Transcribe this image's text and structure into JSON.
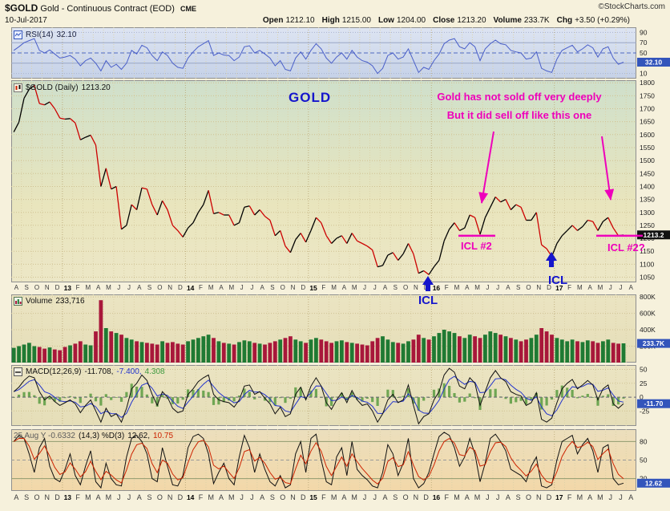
{
  "header": {
    "symbol": "$GOLD",
    "title": "Gold - Continuous Contract (EOD)",
    "exchange": "CME",
    "copyright": "©StockCharts.com",
    "date": "10-Jul-2017",
    "quote": {
      "open_label": "Open",
      "open": "1212.10",
      "high_label": "High",
      "high": "1215.00",
      "low_label": "Low",
      "low": "1204.00",
      "close_label": "Close",
      "close": "1213.20",
      "volume_label": "Volume",
      "volume": "233.7K",
      "chg_label": "Chg",
      "chg": "+3.50 (+0.29%)"
    }
  },
  "panels": {
    "rsi": {
      "name": "RSI(14)",
      "value": "32.10",
      "current_box": "32.10"
    },
    "price": {
      "name": "$GOLD (Daily)",
      "value": "1213.20",
      "current_box": "1213.2"
    },
    "volume": {
      "name": "Volume",
      "value": "233,716",
      "current_box": "233.7K"
    },
    "macd": {
      "name": "MACD(12,26,9)",
      "v1": "-11.708,",
      "v2": "-7.400,",
      "v3": "4.308",
      "current_box": "-11.70"
    },
    "stoch": {
      "prefix": "25 Aug Y -0.6332",
      "params": "(14,3) %D(3)",
      "v1": "12.62,",
      "v2": "10.75",
      "current_box": "12.62"
    }
  },
  "annotations": {
    "gold_label": "GOLD",
    "note_line1": "Gold has not sold off very deeply",
    "note_line2": "But it did sell off like this one",
    "icl2_label": "ICL #2",
    "icl2q_label": "ICL #2?",
    "icl_label_1": "ICL",
    "icl_label_2": "ICL",
    "icl_line_level": 1210
  },
  "colors": {
    "magenta": "#ee00bb",
    "annotation_blue": "#1515cc",
    "price_up": "#000000",
    "price_down": "#cc0000",
    "rsi_line": "#4a5fc8",
    "macd_line": "#111111",
    "macd_signal": "#2233cc",
    "macd_hist": "#6fa653",
    "macd_hist_text": "#3f9a3f",
    "stoch_k": "#111111",
    "stoch_d": "#cc2200",
    "volume_up": "#1f7a33",
    "volume_down": "#a8173a",
    "value_box": "#3355bb",
    "price_box": "#111111"
  },
  "chart_data": [
    {
      "id": "rsi",
      "type": "line",
      "name": "RSI(14)",
      "ylim": [
        0,
        100
      ],
      "yticks": [
        90,
        70,
        50,
        30,
        10
      ],
      "current": 32.1,
      "values": [
        55,
        62,
        70,
        74,
        78,
        55,
        50,
        56,
        48,
        40,
        42,
        45,
        38,
        25,
        35,
        40,
        30,
        15,
        35,
        22,
        28,
        18,
        30,
        55,
        48,
        65,
        60,
        45,
        35,
        52,
        45,
        30,
        22,
        20,
        40,
        52,
        62,
        68,
        74,
        45,
        50,
        46,
        45,
        35,
        42,
        62,
        64,
        50,
        55,
        48,
        40,
        25,
        35,
        18,
        15,
        40,
        52,
        38,
        55,
        68,
        58,
        40,
        30,
        42,
        50,
        38,
        55,
        42,
        35,
        32,
        25,
        10,
        20,
        45,
        50,
        38,
        42,
        58,
        35,
        12,
        22,
        18,
        35,
        48,
        68,
        75,
        78,
        62,
        58,
        70,
        62,
        35,
        58,
        68,
        75,
        68,
        66,
        55,
        52,
        50,
        38,
        40,
        52,
        20,
        15,
        12,
        38,
        55,
        60,
        65,
        52,
        58,
        66,
        60,
        42,
        58,
        62,
        40,
        28,
        32.1
      ]
    },
    {
      "id": "price",
      "type": "line",
      "name": "$GOLD Daily Close",
      "ylim": [
        1030,
        1810
      ],
      "yticks": [
        1800,
        1750,
        1700,
        1650,
        1600,
        1550,
        1500,
        1450,
        1400,
        1350,
        1300,
        1250,
        1200,
        1150,
        1100,
        1050
      ],
      "current": 1213.2,
      "x_months": [
        "A",
        "S",
        "O",
        "N",
        "D",
        "13",
        "F",
        "M",
        "A",
        "M",
        "J",
        "J",
        "A",
        "S",
        "O",
        "N",
        "D",
        "14",
        "F",
        "M",
        "A",
        "M",
        "J",
        "J",
        "A",
        "S",
        "O",
        "N",
        "D",
        "15",
        "F",
        "M",
        "A",
        "M",
        "J",
        "J",
        "A",
        "S",
        "O",
        "N",
        "D",
        "16",
        "F",
        "M",
        "A",
        "M",
        "J",
        "J",
        "A",
        "S",
        "O",
        "N",
        "D",
        "17",
        "F",
        "M",
        "A",
        "M",
        "J",
        "J",
        "A"
      ],
      "values": [
        1610,
        1648,
        1740,
        1775,
        1790,
        1720,
        1715,
        1726,
        1700,
        1664,
        1660,
        1662,
        1645,
        1580,
        1590,
        1598,
        1560,
        1400,
        1470,
        1390,
        1400,
        1235,
        1250,
        1330,
        1310,
        1395,
        1390,
        1330,
        1290,
        1345,
        1310,
        1250,
        1230,
        1205,
        1240,
        1260,
        1300,
        1330,
        1385,
        1295,
        1300,
        1290,
        1290,
        1250,
        1260,
        1320,
        1325,
        1290,
        1310,
        1285,
        1270,
        1210,
        1230,
        1170,
        1145,
        1195,
        1220,
        1185,
        1230,
        1280,
        1260,
        1210,
        1180,
        1200,
        1210,
        1180,
        1220,
        1190,
        1180,
        1170,
        1155,
        1090,
        1095,
        1135,
        1145,
        1115,
        1140,
        1180,
        1140,
        1065,
        1075,
        1060,
        1090,
        1115,
        1190,
        1235,
        1260,
        1230,
        1240,
        1290,
        1280,
        1215,
        1280,
        1320,
        1360,
        1340,
        1350,
        1310,
        1330,
        1320,
        1270,
        1270,
        1300,
        1175,
        1160,
        1130,
        1180,
        1210,
        1230,
        1250,
        1230,
        1245,
        1270,
        1265,
        1230,
        1265,
        1280,
        1240,
        1210,
        1213
      ]
    },
    {
      "id": "volume",
      "type": "bar",
      "name": "Volume",
      "unit": "K",
      "ylim": [
        0,
        830
      ],
      "yticks": [
        800,
        600,
        400,
        200
      ],
      "ytick_labels": [
        "800K",
        "600K",
        "400K",
        "200K"
      ],
      "current": 233.7,
      "values": [
        180,
        200,
        220,
        240,
        200,
        190,
        170,
        185,
        160,
        150,
        190,
        210,
        230,
        260,
        220,
        210,
        380,
        760,
        420,
        380,
        360,
        340,
        300,
        280,
        260,
        250,
        240,
        230,
        220,
        260,
        240,
        250,
        230,
        220,
        260,
        280,
        300,
        320,
        340,
        300,
        260,
        240,
        230,
        220,
        250,
        270,
        260,
        240,
        230,
        220,
        240,
        260,
        280,
        300,
        320,
        280,
        260,
        240,
        280,
        300,
        280,
        260,
        240,
        260,
        270,
        250,
        240,
        230,
        220,
        210,
        260,
        300,
        320,
        280,
        250,
        240,
        230,
        260,
        280,
        340,
        300,
        280,
        320,
        360,
        400,
        380,
        360,
        320,
        300,
        340,
        320,
        300,
        340,
        380,
        360,
        340,
        320,
        300,
        280,
        260,
        280,
        300,
        340,
        420,
        380,
        340,
        300,
        280,
        260,
        280,
        260,
        250,
        270,
        260,
        240,
        260,
        280,
        240,
        230,
        234
      ]
    },
    {
      "id": "macd",
      "type": "line",
      "name": "MACD(12,26,9)",
      "ylim": [
        -52,
        58
      ],
      "yticks": [
        50,
        25,
        0,
        -25
      ],
      "current": -11.7,
      "values": [
        10,
        18,
        30,
        38,
        35,
        10,
        -5,
        2,
        -8,
        -15,
        -10,
        -5,
        -12,
        -28,
        -15,
        -5,
        -25,
        -45,
        -20,
        -35,
        -30,
        -45,
        -20,
        15,
        25,
        40,
        30,
        5,
        -15,
        10,
        0,
        -20,
        -28,
        -25,
        5,
        15,
        28,
        35,
        40,
        5,
        -5,
        -8,
        -10,
        -18,
        -5,
        20,
        22,
        5,
        10,
        -2,
        -12,
        -30,
        -18,
        -35,
        -30,
        5,
        18,
        -5,
        20,
        35,
        20,
        -10,
        -22,
        -5,
        8,
        -10,
        12,
        -5,
        -15,
        -12,
        -25,
        -45,
        -30,
        -5,
        5,
        -10,
        -5,
        22,
        -15,
        -48,
        -35,
        -30,
        -5,
        10,
        40,
        52,
        45,
        20,
        15,
        35,
        25,
        -15,
        10,
        35,
        48,
        35,
        28,
        10,
        5,
        2,
        -15,
        -10,
        8,
        -40,
        -45,
        -38,
        -10,
        15,
        25,
        32,
        15,
        22,
        30,
        22,
        -5,
        15,
        22,
        -12,
        -20,
        -11.7
      ]
    },
    {
      "id": "stoch",
      "type": "line",
      "name": "Stochastics %K/%D",
      "ylim": [
        0,
        100
      ],
      "yticks": [
        80,
        50,
        20
      ],
      "current": 12.62,
      "values": [
        80,
        90,
        85,
        60,
        30,
        70,
        85,
        40,
        20,
        15,
        35,
        60,
        25,
        10,
        40,
        65,
        15,
        5,
        45,
        20,
        10,
        8,
        55,
        85,
        90,
        80,
        60,
        20,
        15,
        70,
        40,
        10,
        8,
        25,
        70,
        88,
        92,
        85,
        60,
        12,
        30,
        45,
        20,
        10,
        55,
        90,
        70,
        30,
        60,
        35,
        15,
        8,
        25,
        5,
        10,
        60,
        80,
        30,
        85,
        92,
        50,
        15,
        10,
        55,
        70,
        25,
        80,
        35,
        25,
        18,
        8,
        5,
        30,
        75,
        60,
        25,
        45,
        85,
        20,
        5,
        12,
        30,
        60,
        88,
        95,
        90,
        70,
        40,
        55,
        85,
        60,
        15,
        45,
        85,
        92,
        80,
        65,
        35,
        30,
        25,
        15,
        40,
        55,
        8,
        5,
        10,
        50,
        80,
        85,
        90,
        60,
        75,
        85,
        65,
        30,
        70,
        75,
        20,
        10,
        12.62
      ]
    }
  ]
}
